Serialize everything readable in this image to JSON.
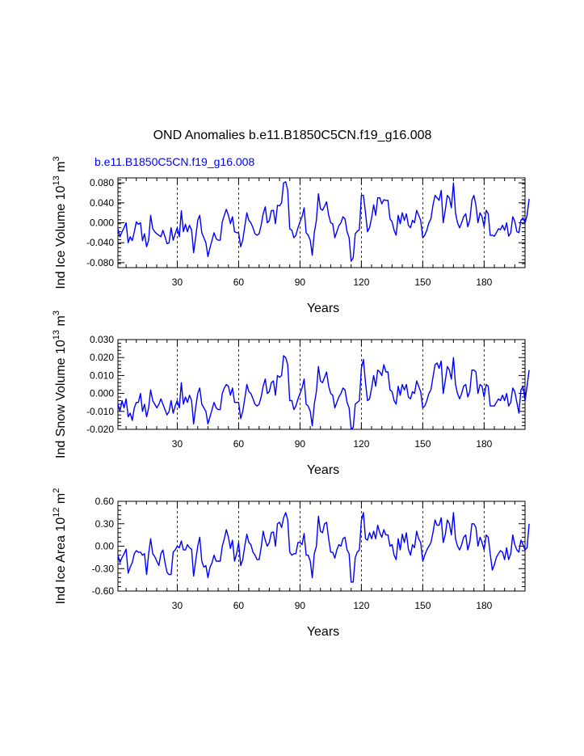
{
  "title": "OND Anomalies b.e11.B1850C5CN.f19_g16.008",
  "case_label": "b.e11.B1850C5CN.f19_g16.008",
  "colors": {
    "series": "#0000ff",
    "case_label": "#0000ff",
    "axis": "#000000"
  },
  "chart_data": [
    {
      "type": "line",
      "title": "OND Anomalies b.e11.B1850C5CN.f19_g16.008",
      "ylabel": "Ind Ice Volume 10^13 m^3",
      "ylabel_parts": {
        "base": "Ind Ice Volume 10",
        "exp": "13",
        "unit": " m",
        "unit_exp": "3"
      },
      "xlabel": "Years",
      "xlim": [
        1,
        200
      ],
      "ylim": [
        -0.09,
        0.09
      ],
      "xticks": [
        30,
        60,
        90,
        120,
        150,
        180
      ],
      "xtick_labels": [
        "30",
        "60",
        "90",
        "120",
        "150",
        "180"
      ],
      "yticks": [
        -0.08,
        -0.04,
        0.0,
        0.04,
        0.08
      ],
      "ytick_labels": [
        "-0.080",
        "-0.040",
        "0.000",
        "0.040",
        "0.080"
      ],
      "grid": "vertical dashed at x ticks",
      "series": [
        {
          "name": "b.e11.B1850C5CN.f19_g16.008",
          "values": [
            -0.012,
            -0.028,
            -0.018,
            -0.01,
            0.0,
            -0.04,
            -0.028,
            -0.036,
            -0.018,
            0.002,
            -0.003,
            0.0,
            -0.036,
            -0.022,
            -0.048,
            -0.035,
            0.015,
            -0.012,
            -0.018,
            -0.022,
            -0.025,
            -0.028,
            -0.015,
            -0.028,
            -0.042,
            -0.04,
            -0.01,
            -0.035,
            -0.022,
            -0.01,
            -0.028,
            0.024,
            -0.018,
            -0.003,
            -0.018,
            -0.005,
            -0.015,
            -0.06,
            -0.03,
            0.005,
            0.015,
            -0.02,
            -0.03,
            -0.04,
            -0.068,
            -0.05,
            -0.035,
            -0.02,
            -0.032,
            -0.035,
            -0.035,
            0.002,
            0.015,
            0.027,
            0.015,
            -0.002,
            0.012,
            -0.018,
            -0.02,
            -0.02,
            -0.048,
            -0.035,
            -0.008,
            0.02,
            0.005,
            0.0,
            -0.01,
            -0.022,
            -0.025,
            -0.022,
            -0.005,
            0.018,
            0.032,
            0.0,
            0.004,
            0.024,
            0.025,
            -0.002,
            0.035,
            0.034,
            0.04,
            0.08,
            0.082,
            0.065,
            -0.012,
            -0.015,
            -0.03,
            -0.025,
            -0.01,
            0.002,
            0.012,
            0.03,
            -0.02,
            -0.025,
            -0.035,
            -0.065,
            -0.02,
            0.005,
            0.058,
            0.028,
            0.025,
            0.033,
            0.042,
            0.015,
            0.0,
            -0.002,
            -0.03,
            -0.018,
            -0.006,
            0.0,
            0.012,
            0.008,
            -0.018,
            -0.03,
            -0.077,
            -0.07,
            -0.022,
            -0.017,
            -0.014,
            0.055,
            0.055,
            0.02,
            -0.018,
            -0.01,
            0.01,
            0.036,
            0.015,
            0.05,
            0.05,
            0.038,
            0.046,
            0.045,
            0.045,
            0.008,
            0.002,
            -0.015,
            -0.025,
            0.015,
            -0.002,
            0.02,
            0.005,
            0.018,
            -0.005,
            -0.01,
            0.005,
            0.0,
            0.025,
            0.015,
            0.005,
            -0.03,
            -0.025,
            -0.015,
            0.0,
            0.008,
            0.035,
            0.055,
            0.05,
            0.045,
            0.065,
            0.0,
            0.025,
            0.055,
            0.05,
            0.03,
            0.08,
            0.02,
            0.0,
            -0.01,
            0.0,
            0.012,
            0.018,
            -0.008,
            0.005,
            0.045,
            0.055,
            0.035,
            0.0,
            0.02,
            0.012,
            -0.008,
            0.025,
            0.018,
            -0.025,
            -0.025,
            -0.027,
            -0.02,
            -0.012,
            -0.014,
            -0.005,
            -0.015,
            0.0,
            -0.027,
            -0.02,
            0.012,
            0.003,
            -0.018,
            -0.02,
            0.005,
            0.01,
            0.0,
            0.015,
            0.048
          ]
        }
      ]
    },
    {
      "type": "line",
      "ylabel": "Ind Snow Volume 10^13 m^3",
      "ylabel_parts": {
        "base": "Ind Snow Volume 10",
        "exp": "13",
        "unit": " m",
        "unit_exp": "3"
      },
      "xlabel": "Years",
      "xlim": [
        1,
        200
      ],
      "ylim": [
        -0.02,
        0.03
      ],
      "xticks": [
        30,
        60,
        90,
        120,
        150,
        180
      ],
      "xtick_labels": [
        "30",
        "60",
        "90",
        "120",
        "150",
        "180"
      ],
      "yticks": [
        -0.02,
        -0.01,
        0.0,
        0.01,
        0.02,
        0.03
      ],
      "ytick_labels": [
        "-0.020",
        "-0.010",
        "0.000",
        "0.010",
        "0.020",
        "0.030"
      ],
      "grid": "vertical dashed at x ticks",
      "series": [
        {
          "name": "b.e11.B1850C5CN.f19_g16.008",
          "values": [
            -0.006,
            -0.01,
            -0.004,
            -0.008,
            -0.003,
            -0.013,
            -0.011,
            -0.015,
            -0.008,
            -0.005,
            -0.005,
            0.0,
            -0.01,
            -0.006,
            -0.013,
            -0.008,
            0.002,
            -0.004,
            -0.006,
            -0.008,
            -0.006,
            -0.003,
            -0.006,
            -0.009,
            -0.012,
            -0.01,
            -0.004,
            -0.011,
            -0.007,
            -0.004,
            -0.008,
            0.006,
            -0.006,
            -0.002,
            -0.005,
            -0.001,
            -0.004,
            -0.017,
            -0.008,
            0.0,
            0.003,
            -0.006,
            -0.008,
            -0.01,
            -0.017,
            -0.013,
            -0.009,
            -0.005,
            -0.008,
            -0.009,
            -0.009,
            0.0,
            0.003,
            0.005,
            0.004,
            -0.001,
            0.003,
            -0.005,
            -0.005,
            -0.005,
            -0.014,
            -0.01,
            -0.003,
            0.005,
            0.001,
            0.0,
            -0.003,
            -0.006,
            -0.007,
            -0.006,
            -0.002,
            0.004,
            0.008,
            0.0,
            0.001,
            0.006,
            0.007,
            -0.001,
            0.01,
            0.009,
            0.01,
            0.021,
            0.02,
            0.016,
            -0.004,
            -0.004,
            -0.009,
            -0.007,
            -0.003,
            0.0,
            0.003,
            0.008,
            -0.006,
            -0.007,
            -0.01,
            -0.018,
            -0.006,
            0.001,
            0.015,
            0.007,
            0.006,
            0.009,
            0.012,
            0.004,
            0.0,
            -0.001,
            -0.008,
            -0.005,
            -0.002,
            0.0,
            0.003,
            0.002,
            -0.005,
            -0.008,
            -0.02,
            -0.019,
            -0.006,
            -0.005,
            -0.004,
            0.014,
            0.019,
            0.006,
            -0.004,
            -0.003,
            0.003,
            0.01,
            0.004,
            0.013,
            0.012,
            0.01,
            0.016,
            0.012,
            0.012,
            0.002,
            0.001,
            -0.004,
            -0.006,
            0.004,
            -0.001,
            0.005,
            0.002,
            0.005,
            -0.002,
            -0.003,
            0.001,
            0.0,
            0.007,
            0.004,
            0.001,
            -0.008,
            -0.007,
            -0.004,
            0.0,
            0.002,
            0.009,
            0.016,
            0.017,
            0.014,
            0.018,
            0.0,
            0.007,
            0.015,
            0.013,
            0.008,
            0.02,
            0.005,
            0.0,
            -0.003,
            0.0,
            0.004,
            0.005,
            -0.002,
            0.001,
            0.013,
            0.013,
            0.012,
            0.0,
            0.005,
            0.004,
            -0.002,
            0.005,
            0.004,
            -0.007,
            -0.007,
            -0.007,
            -0.005,
            -0.003,
            -0.004,
            -0.001,
            -0.004,
            0.0,
            -0.007,
            -0.005,
            0.003,
            0.001,
            -0.005,
            -0.011,
            0.002,
            0.004,
            -0.004,
            0.004,
            0.013
          ]
        }
      ]
    },
    {
      "type": "line",
      "ylabel": "Ind Ice Area 10^12 m^2",
      "ylabel_parts": {
        "base": "Ind Ice Area 10",
        "exp": "12",
        "unit": " m",
        "unit_exp": "2"
      },
      "xlabel": "Years",
      "xlim": [
        1,
        200
      ],
      "ylim": [
        -0.6,
        0.6
      ],
      "xticks": [
        30,
        60,
        90,
        120,
        150,
        180
      ],
      "xtick_labels": [
        "30",
        "60",
        "90",
        "120",
        "150",
        "180"
      ],
      "yticks": [
        -0.6,
        -0.3,
        0.0,
        0.3,
        0.6
      ],
      "ytick_labels": [
        "-0.60",
        "-0.30",
        "0.00",
        "0.30",
        "0.60"
      ],
      "grid": "vertical dashed at x ticks",
      "series": [
        {
          "name": "b.e11.B1850C5CN.f19_g16.008",
          "values": [
            -0.12,
            -0.22,
            -0.15,
            -0.1,
            -0.04,
            -0.36,
            -0.28,
            -0.22,
            -0.1,
            -0.06,
            -0.08,
            -0.08,
            -0.12,
            -0.1,
            -0.38,
            -0.1,
            0.1,
            -0.1,
            -0.14,
            -0.2,
            -0.26,
            -0.1,
            -0.05,
            -0.22,
            -0.35,
            -0.38,
            -0.38,
            -0.08,
            -0.05,
            0.0,
            -0.02,
            0.07,
            -0.05,
            -0.05,
            0.02,
            -0.02,
            -0.04,
            -0.4,
            -0.2,
            0.0,
            0.12,
            -0.2,
            -0.28,
            -0.26,
            -0.42,
            -0.28,
            -0.22,
            -0.12,
            -0.2,
            -0.2,
            -0.2,
            0.0,
            0.1,
            0.22,
            0.12,
            -0.03,
            0.08,
            -0.2,
            -0.1,
            0.05,
            -0.26,
            -0.18,
            0.0,
            0.16,
            0.05,
            0.02,
            -0.08,
            -0.12,
            -0.18,
            -0.18,
            -0.02,
            0.2,
            0.08,
            0.0,
            0.05,
            0.18,
            0.19,
            0.0,
            0.3,
            0.32,
            0.25,
            0.38,
            0.45,
            0.35,
            -0.08,
            -0.12,
            -0.1,
            -0.1,
            0.05,
            0.05,
            0.02,
            0.17,
            -0.12,
            -0.12,
            -0.2,
            -0.42,
            -0.1,
            0.0,
            0.4,
            0.2,
            0.18,
            0.3,
            0.32,
            0.1,
            -0.08,
            -0.08,
            -0.16,
            -0.05,
            0.02,
            0.0,
            0.1,
            0.12,
            -0.05,
            -0.1,
            -0.48,
            -0.48,
            -0.15,
            -0.08,
            -0.05,
            0.34,
            0.45,
            0.1,
            0.08,
            0.18,
            0.1,
            0.2,
            0.1,
            0.28,
            0.18,
            0.12,
            0.22,
            0.15,
            0.15,
            0.0,
            0.02,
            -0.12,
            -0.18,
            0.1,
            -0.05,
            0.16,
            0.05,
            0.18,
            -0.04,
            -0.12,
            0.02,
            -0.02,
            0.2,
            0.1,
            0.05,
            -0.2,
            -0.12,
            -0.05,
            0.0,
            0.05,
            0.18,
            0.35,
            0.28,
            0.28,
            0.38,
            0.05,
            0.15,
            0.35,
            0.3,
            0.15,
            0.45,
            0.1,
            0.0,
            -0.05,
            0.02,
            0.12,
            0.15,
            -0.05,
            0.05,
            0.3,
            0.3,
            0.25,
            0.0,
            0.12,
            0.05,
            -0.05,
            0.15,
            0.12,
            -0.1,
            -0.32,
            -0.25,
            -0.15,
            -0.1,
            -0.06,
            -0.08,
            -0.18,
            -0.02,
            -0.18,
            -0.1,
            0.15,
            0.02,
            -0.05,
            -0.08,
            0.08,
            0.02,
            -0.05,
            -0.02,
            0.3
          ]
        }
      ]
    }
  ]
}
